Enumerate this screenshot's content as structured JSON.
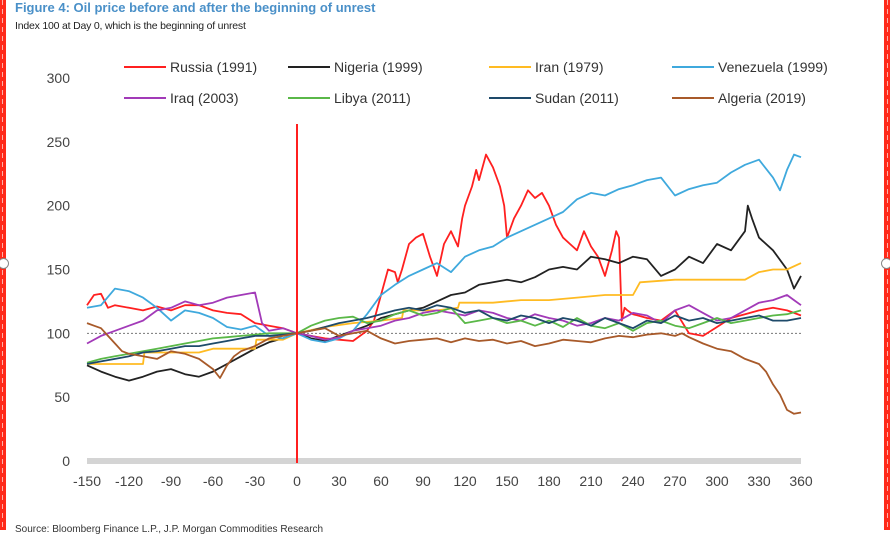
{
  "figure": {
    "title": "Figure 4: Oil price before and after the beginning of unrest",
    "subtitle": "Index 100 at Day 0, which is the beginning of unrest",
    "source": "Source: Bloomberg Finance L.P., J.P. Morgan Commodities Research"
  },
  "colors": {
    "event_line": "#ff1f1f",
    "baseline": "#777777",
    "axis_bar": "#d4d4d4",
    "selection_border": "#ff2a1a"
  },
  "chart_data": {
    "type": "line",
    "title": "Figure 4: Oil price before and after the beginning of unrest",
    "subtitle": "Index 100 at Day 0, which is the beginning of unrest",
    "xlabel": "",
    "ylabel": "",
    "xlim": [
      -150,
      360
    ],
    "ylim": [
      0,
      300
    ],
    "x_ticks": [
      -150,
      -120,
      -90,
      -60,
      -30,
      0,
      30,
      60,
      90,
      120,
      150,
      180,
      210,
      240,
      270,
      300,
      330,
      360
    ],
    "y_ticks": [
      0,
      50,
      100,
      150,
      200,
      250,
      300
    ],
    "grid": false,
    "reference_line": {
      "y": 100,
      "style": "dotted"
    },
    "event_marker": {
      "x": 0,
      "label": "beginning of unrest"
    },
    "legend_position": "top",
    "series": [
      {
        "name": "Russia (1991)",
        "color": "#ff2020",
        "x": [
          -150,
          -145,
          -140,
          -135,
          -130,
          -120,
          -110,
          -100,
          -90,
          -80,
          -70,
          -60,
          -50,
          -40,
          -30,
          -20,
          -10,
          0,
          10,
          20,
          30,
          40,
          50,
          55,
          60,
          65,
          70,
          72,
          75,
          80,
          85,
          90,
          95,
          100,
          105,
          110,
          115,
          118,
          120,
          125,
          128,
          130,
          135,
          140,
          145,
          148,
          150,
          155,
          160,
          165,
          170,
          175,
          180,
          185,
          190,
          195,
          200,
          205,
          210,
          215,
          220,
          225,
          228,
          230,
          232,
          234,
          236,
          240,
          250,
          260,
          270,
          280,
          290,
          300,
          310,
          320,
          330,
          340,
          350,
          355,
          360
        ],
        "y": [
          122,
          130,
          131,
          120,
          122,
          120,
          118,
          121,
          118,
          122,
          122,
          118,
          116,
          115,
          108,
          106,
          104,
          100,
          98,
          96,
          95,
          94,
          102,
          110,
          130,
          150,
          148,
          140,
          150,
          170,
          175,
          178,
          160,
          145,
          170,
          180,
          168,
          190,
          200,
          215,
          228,
          220,
          240,
          230,
          215,
          200,
          175,
          190,
          200,
          212,
          206,
          210,
          200,
          185,
          175,
          170,
          165,
          180,
          168,
          160,
          145,
          165,
          180,
          175,
          110,
          120,
          118,
          115,
          112,
          110,
          118,
          100,
          98,
          105,
          112,
          115,
          118,
          120,
          118,
          116,
          114
        ]
      },
      {
        "name": "Nigeria (1999)",
        "color": "#222222",
        "x": [
          -150,
          -140,
          -130,
          -120,
          -110,
          -100,
          -90,
          -80,
          -70,
          -60,
          -50,
          -40,
          -30,
          -20,
          -10,
          0,
          10,
          20,
          30,
          40,
          50,
          60,
          70,
          80,
          90,
          100,
          110,
          120,
          130,
          140,
          150,
          160,
          170,
          180,
          190,
          200,
          210,
          220,
          230,
          240,
          250,
          260,
          270,
          280,
          290,
          300,
          310,
          320,
          322,
          325,
          330,
          340,
          350,
          355,
          360
        ],
        "y": [
          75,
          70,
          66,
          63,
          66,
          70,
          72,
          68,
          66,
          70,
          76,
          82,
          88,
          93,
          96,
          100,
          96,
          94,
          98,
          102,
          106,
          112,
          115,
          118,
          120,
          125,
          130,
          132,
          138,
          140,
          142,
          140,
          144,
          150,
          152,
          150,
          160,
          158,
          155,
          160,
          158,
          145,
          150,
          160,
          155,
          170,
          165,
          180,
          200,
          190,
          175,
          165,
          150,
          135,
          145
        ]
      },
      {
        "name": "Iran (1979)",
        "color": "#ffbb22",
        "x": [
          -150,
          -130,
          -110,
          -109,
          -90,
          -70,
          -60,
          -30,
          -29,
          -10,
          0,
          20,
          40,
          60,
          75,
          76,
          100,
          115,
          116,
          140,
          160,
          180,
          200,
          220,
          240,
          245,
          270,
          300,
          320,
          330,
          340,
          350,
          360
        ],
        "y": [
          76,
          76,
          76,
          85,
          85,
          85,
          88,
          88,
          95,
          95,
          100,
          105,
          108,
          110,
          112,
          118,
          118,
          120,
          124,
          124,
          126,
          126,
          128,
          130,
          130,
          140,
          142,
          142,
          142,
          148,
          150,
          150,
          155
        ]
      },
      {
        "name": "Venezuela (1999)",
        "color": "#3fa9dd",
        "x": [
          -150,
          -140,
          -130,
          -120,
          -110,
          -100,
          -90,
          -80,
          -70,
          -60,
          -50,
          -40,
          -30,
          -20,
          -10,
          0,
          10,
          20,
          30,
          40,
          50,
          60,
          70,
          80,
          90,
          100,
          110,
          120,
          130,
          140,
          150,
          160,
          170,
          180,
          190,
          200,
          210,
          220,
          230,
          240,
          250,
          260,
          270,
          280,
          290,
          300,
          310,
          320,
          330,
          340,
          345,
          350,
          355,
          360
        ],
        "y": [
          120,
          122,
          135,
          133,
          128,
          120,
          110,
          118,
          116,
          112,
          105,
          103,
          106,
          98,
          96,
          100,
          95,
          93,
          96,
          102,
          115,
          130,
          138,
          145,
          150,
          155,
          148,
          160,
          165,
          168,
          175,
          180,
          185,
          190,
          195,
          205,
          210,
          208,
          213,
          216,
          220,
          222,
          208,
          213,
          216,
          218,
          226,
          232,
          236,
          222,
          212,
          228,
          240,
          238
        ]
      },
      {
        "name": "Iraq (2003)",
        "color": "#a23ab8",
        "x": [
          -150,
          -140,
          -130,
          -120,
          -110,
          -100,
          -90,
          -80,
          -70,
          -60,
          -50,
          -40,
          -30,
          -25,
          -20,
          -10,
          0,
          10,
          20,
          30,
          40,
          50,
          60,
          70,
          80,
          90,
          100,
          110,
          120,
          130,
          140,
          150,
          160,
          170,
          180,
          190,
          200,
          210,
          220,
          230,
          240,
          250,
          260,
          270,
          280,
          290,
          300,
          310,
          320,
          330,
          340,
          350,
          355,
          360
        ],
        "y": [
          92,
          98,
          102,
          106,
          110,
          118,
          120,
          125,
          122,
          124,
          128,
          130,
          132,
          108,
          102,
          104,
          100,
          98,
          95,
          97,
          102,
          104,
          106,
          110,
          112,
          116,
          118,
          116,
          114,
          118,
          116,
          112,
          110,
          115,
          112,
          110,
          106,
          108,
          112,
          110,
          116,
          114,
          108,
          118,
          122,
          116,
          110,
          112,
          118,
          124,
          126,
          130,
          126,
          122
        ]
      },
      {
        "name": "Libya (2011)",
        "color": "#5ab848",
        "x": [
          -150,
          -140,
          -130,
          -120,
          -110,
          -100,
          -90,
          -80,
          -70,
          -60,
          -50,
          -40,
          -30,
          -20,
          -10,
          0,
          10,
          20,
          30,
          40,
          50,
          60,
          70,
          80,
          90,
          100,
          110,
          120,
          130,
          140,
          150,
          160,
          170,
          180,
          190,
          200,
          210,
          220,
          230,
          240,
          250,
          260,
          270,
          280,
          290,
          300,
          310,
          320,
          330,
          340,
          350,
          360
        ],
        "y": [
          77,
          80,
          82,
          84,
          86,
          88,
          90,
          92,
          94,
          96,
          97,
          98,
          99,
          100,
          100,
          100,
          106,
          110,
          112,
          113,
          108,
          110,
          115,
          118,
          114,
          116,
          120,
          108,
          110,
          112,
          108,
          110,
          106,
          110,
          105,
          112,
          106,
          104,
          108,
          102,
          108,
          110,
          106,
          104,
          108,
          112,
          108,
          110,
          112,
          114,
          115,
          118
        ]
      },
      {
        "name": "Sudan (2011)",
        "color": "#1e4a6a",
        "x": [
          -150,
          -140,
          -130,
          -120,
          -110,
          -100,
          -90,
          -80,
          -70,
          -60,
          -50,
          -40,
          -30,
          -20,
          -10,
          0,
          10,
          20,
          30,
          40,
          50,
          60,
          70,
          80,
          90,
          100,
          110,
          120,
          130,
          140,
          150,
          160,
          170,
          180,
          190,
          200,
          210,
          220,
          230,
          240,
          250,
          260,
          270,
          280,
          290,
          300,
          310,
          320,
          330,
          340,
          350,
          360
        ],
        "y": [
          76,
          78,
          80,
          82,
          85,
          86,
          88,
          90,
          90,
          92,
          94,
          96,
          98,
          98,
          99,
          100,
          102,
          105,
          108,
          110,
          112,
          115,
          118,
          120,
          118,
          122,
          120,
          116,
          118,
          112,
          110,
          114,
          112,
          108,
          112,
          110,
          106,
          112,
          108,
          104,
          110,
          108,
          114,
          110,
          112,
          108,
          110,
          112,
          114,
          110,
          110,
          112
        ]
      },
      {
        "name": "Algeria (2019)",
        "color": "#a85a2a",
        "x": [
          -150,
          -145,
          -140,
          -135,
          -130,
          -125,
          -120,
          -110,
          -100,
          -90,
          -80,
          -70,
          -60,
          -55,
          -50,
          -45,
          -40,
          -30,
          -20,
          -10,
          0,
          10,
          20,
          30,
          40,
          50,
          60,
          70,
          80,
          90,
          100,
          110,
          120,
          130,
          140,
          150,
          160,
          170,
          180,
          190,
          200,
          210,
          220,
          230,
          240,
          250,
          260,
          270,
          275,
          280,
          290,
          300,
          310,
          320,
          330,
          335,
          340,
          345,
          350,
          355,
          360
        ],
        "y": [
          108,
          106,
          104,
          98,
          92,
          86,
          84,
          82,
          80,
          86,
          84,
          80,
          72,
          65,
          75,
          82,
          86,
          90,
          96,
          98,
          100,
          102,
          104,
          98,
          100,
          102,
          96,
          92,
          94,
          95,
          96,
          93,
          96,
          94,
          95,
          92,
          94,
          90,
          92,
          95,
          94,
          93,
          96,
          98,
          97,
          99,
          100,
          98,
          100,
          97,
          92,
          88,
          86,
          80,
          76,
          70,
          60,
          52,
          40,
          37,
          38
        ]
      }
    ]
  }
}
